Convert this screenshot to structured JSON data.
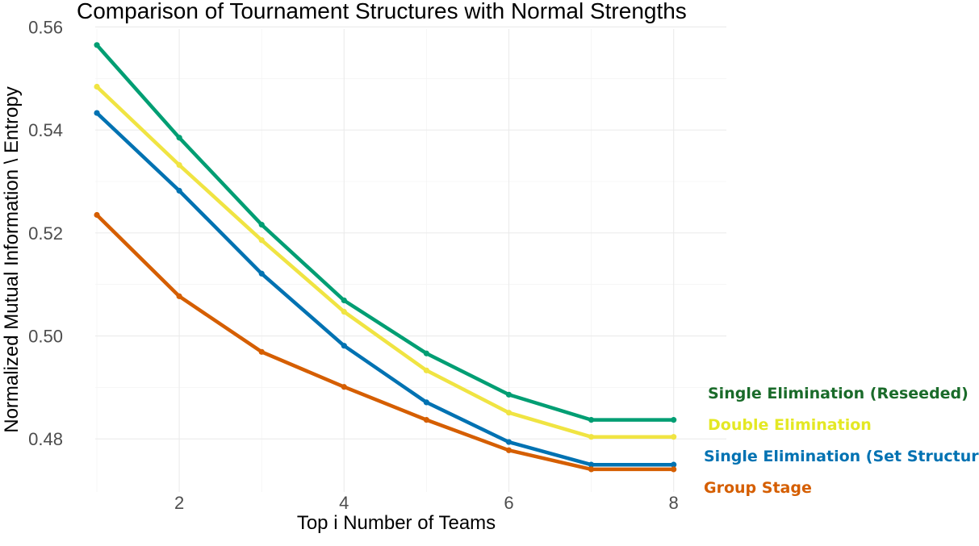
{
  "chart_data": {
    "type": "line",
    "title": "Comparison of Tournament Structures with Normal Strengths",
    "xlabel": "Top i Number of Teams",
    "ylabel": "Normalized Mutual Information \\ Entropy",
    "x": [
      1,
      2,
      3,
      4,
      5,
      6,
      7,
      8
    ],
    "xlim": [
      0.98,
      8.64
    ],
    "ylim": [
      0.4697,
      0.5596
    ],
    "xticks": [
      2,
      4,
      6,
      8
    ],
    "xtick_labels": [
      "2",
      "4",
      "6",
      "8"
    ],
    "yticks": [
      0.48,
      0.5,
      0.52,
      0.54,
      0.56
    ],
    "ytick_labels": [
      "0.48",
      "0.50",
      "0.52",
      "0.54",
      "0.56"
    ],
    "grid": true,
    "legend": "direct labels at right end of each line",
    "series": [
      {
        "name": "Single Elimination (Reseeded)",
        "color": "#009E73",
        "label_color": "#1a6b2a",
        "values": [
          0.5565,
          0.5385,
          0.5216,
          0.5069,
          0.4966,
          0.4886,
          0.4837,
          0.4837
        ]
      },
      {
        "name": "Double Elimination",
        "color": "#F0E442",
        "label_color": "#e4e824",
        "values": [
          0.5484,
          0.5332,
          0.5186,
          0.5047,
          0.4933,
          0.4851,
          0.4804,
          0.4804
        ]
      },
      {
        "name": "Single Elimination (Set Structure)",
        "color": "#0072B2",
        "label_color": "#0072B2",
        "values": [
          0.5433,
          0.5282,
          0.5121,
          0.4981,
          0.4871,
          0.4794,
          0.475,
          0.475
        ]
      },
      {
        "name": "Group Stage",
        "color": "#D55E00",
        "label_color": "#D55E00",
        "values": [
          0.5235,
          0.5077,
          0.4969,
          0.4901,
          0.4837,
          0.4778,
          0.4741,
          0.4741
        ]
      }
    ]
  }
}
